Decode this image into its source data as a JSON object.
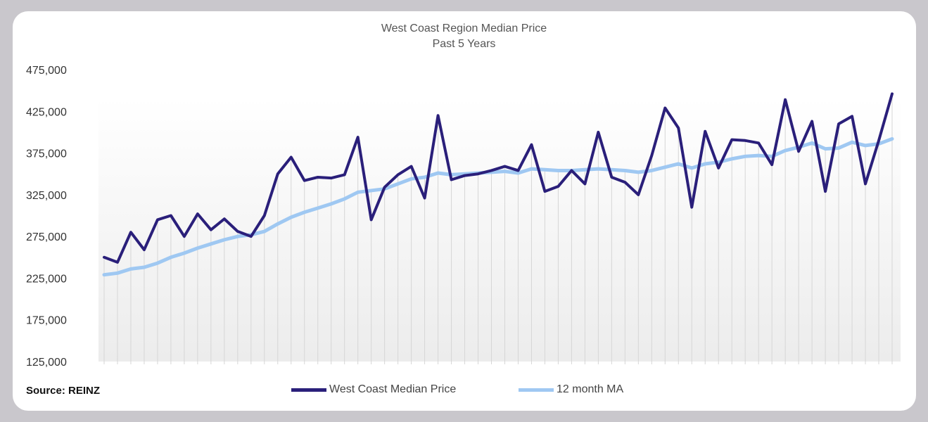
{
  "chart_data": {
    "type": "line",
    "title": "West Coast Region Median Price",
    "subtitle": "Past 5 Years",
    "xlabel": "",
    "ylabel": "",
    "ylim": [
      125000,
      475000
    ],
    "yticks": [
      "475,000",
      "425,000",
      "375,000",
      "325,000",
      "275,000",
      "225,000",
      "175,000",
      "125,000"
    ],
    "ytick_values": [
      475000,
      425000,
      375000,
      325000,
      275000,
      225000,
      175000,
      125000
    ],
    "grid": "vertical",
    "legend_position": "bottom",
    "series": [
      {
        "name": "West Coast Median Price",
        "color": "#2a1f7a",
        "values": [
          250000,
          244000,
          280000,
          259000,
          295000,
          300000,
          275000,
          302000,
          283000,
          296000,
          281000,
          275000,
          300000,
          350000,
          370000,
          342000,
          346000,
          345000,
          349000,
          394000,
          295000,
          334000,
          349000,
          359000,
          321000,
          420000,
          343000,
          348000,
          350000,
          354000,
          359000,
          354000,
          385000,
          329000,
          335000,
          354000,
          338000,
          400000,
          346000,
          340000,
          325000,
          372000,
          429000,
          405000,
          310000,
          401000,
          357000,
          391000,
          390000,
          387000,
          361000,
          439000,
          377000,
          413000,
          329000,
          410000,
          419000,
          338000,
          390000,
          446000
        ]
      },
      {
        "name": "12 month MA",
        "color": "#9fc8f2",
        "values": [
          229000,
          231000,
          236000,
          238000,
          243000,
          250000,
          255000,
          261000,
          266000,
          271000,
          275000,
          277000,
          281000,
          290000,
          298000,
          304000,
          309000,
          314000,
          320000,
          328000,
          330000,
          332000,
          338000,
          344000,
          346000,
          351000,
          349000,
          350000,
          351000,
          352000,
          353000,
          351000,
          356000,
          355000,
          354000,
          354000,
          355000,
          356000,
          355000,
          354000,
          352000,
          354000,
          358000,
          362000,
          357000,
          362000,
          364000,
          368000,
          371000,
          372000,
          371000,
          378000,
          382000,
          387000,
          380000,
          381000,
          388000,
          384000,
          386000,
          392000
        ]
      }
    ]
  },
  "source": "Source: REINZ"
}
